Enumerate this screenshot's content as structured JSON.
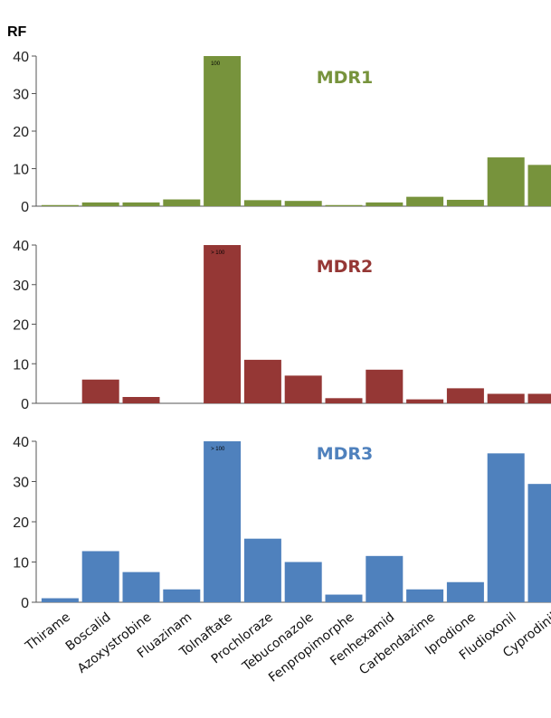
{
  "y_unit_label": "RF",
  "chart_data": {
    "type": "bar",
    "ylim": [
      0,
      40
    ],
    "yticks": [
      0,
      10,
      20,
      30,
      40
    ],
    "categories": [
      "Thirame",
      "Boscalid",
      "Azoxystrobine",
      "Fluazinam",
      "Tolnaftate",
      "Prochloraze",
      "Tebuconazole",
      "Fenpropimorphe",
      "Fenhexamid",
      "Carbendazime",
      "Iprodione",
      "Fludioxonil",
      "Cyprodinil"
    ],
    "panels": [
      {
        "title": "MDR1",
        "color": "#77933c",
        "values": [
          0.3,
          1.0,
          1.0,
          1.8,
          40,
          1.6,
          1.4,
          0.3,
          1.0,
          2.5,
          1.7,
          13,
          11
        ],
        "annotation": {
          "category": "Tolnaftate",
          "text": "100"
        }
      },
      {
        "title": "MDR2",
        "color": "#953735",
        "values": [
          0,
          6,
          1.6,
          0,
          40,
          11,
          7,
          1.3,
          8.5,
          1.0,
          3.8,
          2.4,
          2.4
        ],
        "annotation": {
          "category": "Tolnaftate",
          "text": "> 100"
        }
      },
      {
        "title": "MDR3",
        "color": "#4f81bd",
        "values": [
          1.0,
          12.7,
          7.5,
          3.2,
          40,
          15.8,
          10,
          1.9,
          11.5,
          3.2,
          5,
          37,
          29.4
        ],
        "annotation": {
          "category": "Tolnaftate",
          "text": "> 100"
        }
      }
    ]
  }
}
